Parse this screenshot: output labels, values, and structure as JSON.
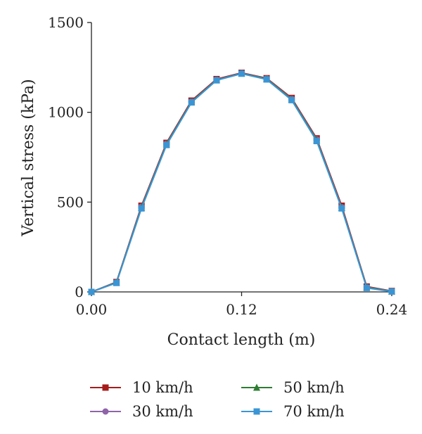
{
  "chart_data": {
    "type": "line",
    "xlabel": "Contact length (m)",
    "ylabel": "Vertical stress (kPa)",
    "xlim": [
      0,
      0.24
    ],
    "ylim": [
      0,
      1500
    ],
    "xticks": [
      "0.00",
      "0.12",
      "0.24"
    ],
    "yticks": [
      "0",
      "500",
      "1000",
      "1500"
    ],
    "grid": false,
    "legend_position": "bottom",
    "x": [
      0.0,
      0.02,
      0.04,
      0.06,
      0.08,
      0.1,
      0.12,
      0.14,
      0.16,
      0.18,
      0.2,
      0.22,
      0.24
    ],
    "series": [
      {
        "name": "10 km/h",
        "color": "#A61C1C",
        "marker": "square",
        "values": [
          0,
          55,
          480,
          830,
          1065,
          1185,
          1220,
          1190,
          1080,
          855,
          480,
          30,
          5
        ]
      },
      {
        "name": "30 km/h",
        "color": "#8E64A8",
        "marker": "circle",
        "values": [
          0,
          53,
          475,
          825,
          1060,
          1182,
          1218,
          1188,
          1075,
          850,
          472,
          27,
          4
        ]
      },
      {
        "name": "50 km/h",
        "color": "#2E7D32",
        "marker": "triangle",
        "values": [
          0,
          52,
          470,
          822,
          1058,
          1180,
          1216,
          1186,
          1072,
          845,
          468,
          25,
          3
        ]
      },
      {
        "name": "70 km/h",
        "color": "#3B95D4",
        "marker": "square",
        "values": [
          0,
          50,
          465,
          818,
          1055,
          1178,
          1215,
          1183,
          1068,
          840,
          465,
          22,
          2
        ]
      }
    ]
  }
}
